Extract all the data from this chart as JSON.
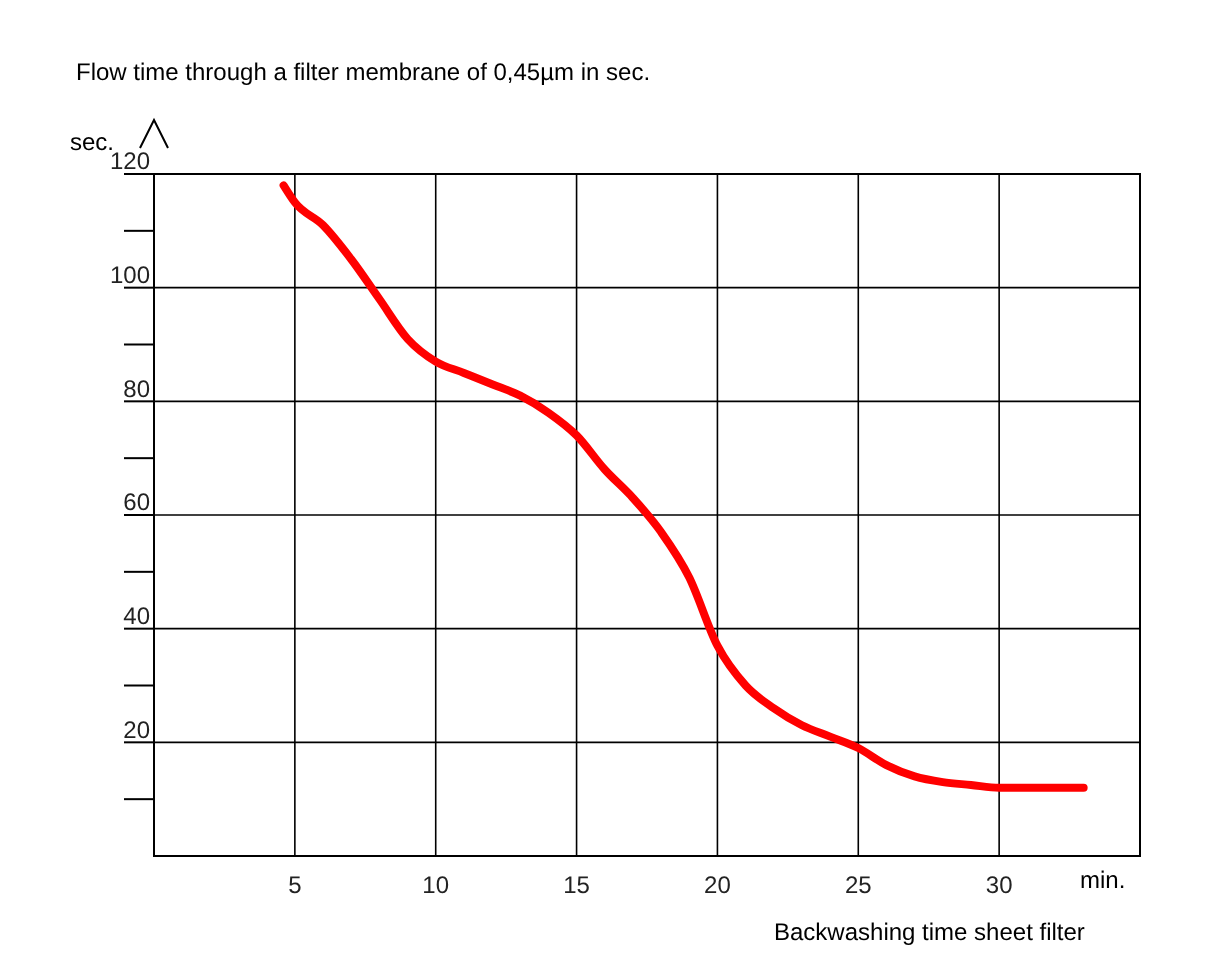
{
  "chart_data": {
    "type": "line",
    "title": "Flow time through a filter membrane of 0,45µm in sec.",
    "xlabel": "min.",
    "ylabel": "sec.",
    "annotations": [
      "Backwashing time sheet filter"
    ],
    "x": [
      4.6,
      5,
      6,
      7,
      8,
      9,
      10,
      11,
      12,
      13,
      14,
      15,
      16,
      17,
      18,
      19,
      20,
      21,
      22,
      23,
      24,
      25,
      26,
      27,
      28,
      29,
      30,
      31,
      32,
      33
    ],
    "series": [
      {
        "color": "#ff0000",
        "values": [
          118,
          115,
          111,
          105,
          98,
          91,
          87,
          85,
          83,
          81,
          78,
          74,
          68,
          63,
          57,
          49,
          37,
          30,
          26,
          23,
          21,
          19,
          16,
          14,
          13,
          12.5,
          12,
          12,
          12,
          12
        ]
      }
    ],
    "xlim": [
      0,
      35
    ],
    "xticks": [
      5,
      10,
      15,
      20,
      25,
      30
    ],
    "ylim": [
      0,
      120
    ],
    "yticks": [
      {
        "value": 10,
        "label": null
      },
      20,
      {
        "value": 30,
        "label": null
      },
      40,
      {
        "value": 50,
        "label": null
      },
      60,
      {
        "value": 70,
        "label": null
      },
      80,
      {
        "value": 90,
        "label": null
      },
      100,
      {
        "value": 110,
        "label": null
      },
      120
    ],
    "grid": true,
    "line_style": "solid",
    "marker": "none"
  }
}
